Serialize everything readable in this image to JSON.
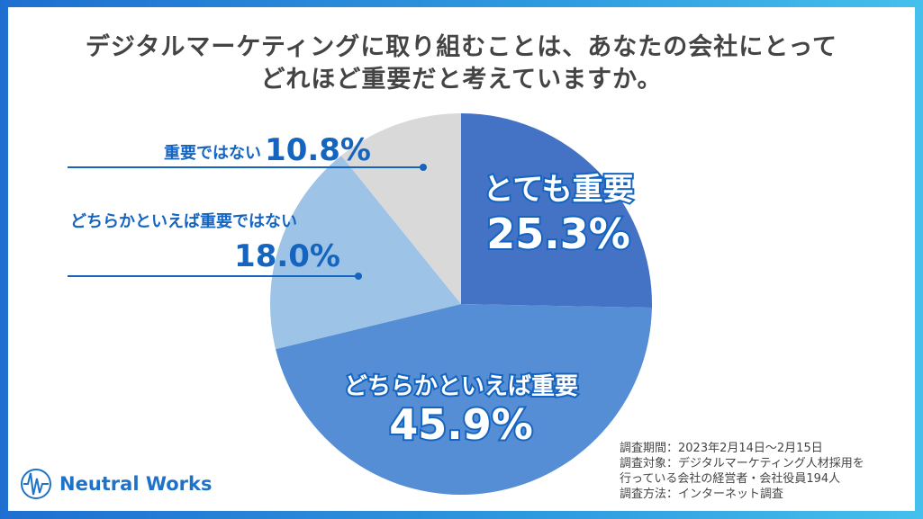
{
  "title_lines": [
    "デジタルマーケティングに取り組むことは、あなたの会社にとって",
    "どれほど重要だと考えていますか。"
  ],
  "chart_data": {
    "type": "pie",
    "start": "top",
    "direction": "clockwise",
    "categories": [
      "とても重要",
      "どちらかといえば重要",
      "どちらかといえば重要ではない",
      "重要ではない"
    ],
    "values": [
      25.3,
      45.9,
      18.0,
      10.8
    ],
    "value_labels": [
      "25.3%",
      "45.9%",
      "18.0%",
      "10.8%"
    ],
    "colors": [
      "#4472c4",
      "#558ed5",
      "#9dc3e6",
      "#d9d9d9"
    ]
  },
  "label_color": "#1565c0",
  "notes": [
    "調査期間：2023年2月14日～2月15日",
    "調査対象：デジタルマーケティング人材採用を",
    "行っている会社の経営者・会社役員194人",
    "調査方法：インターネット調査"
  ],
  "logo": {
    "text": "Neutral Works",
    "icon": "neutral-works-logo-icon"
  }
}
